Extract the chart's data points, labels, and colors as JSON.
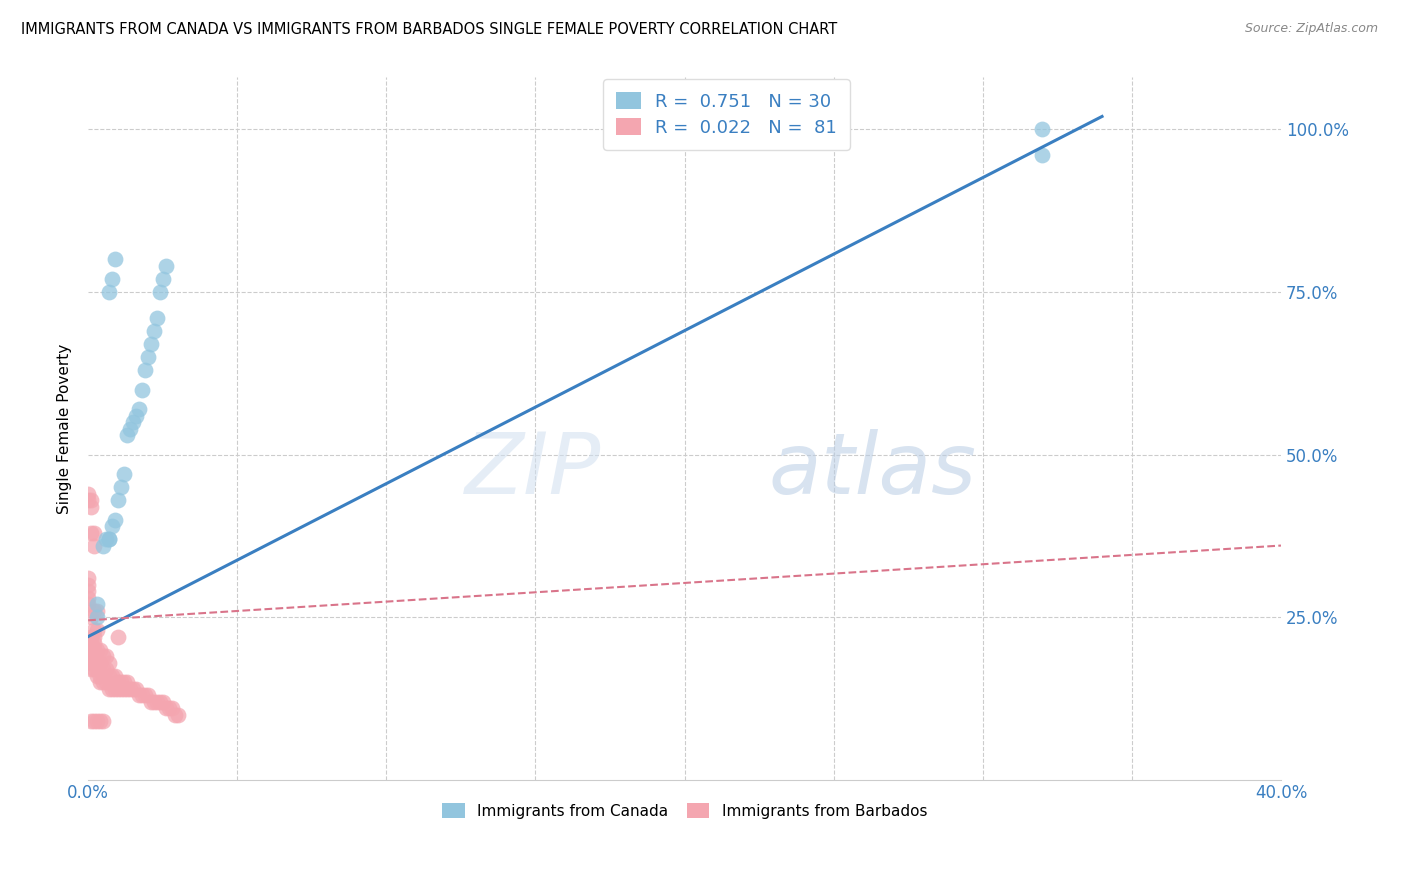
{
  "title": "IMMIGRANTS FROM CANADA VS IMMIGRANTS FROM BARBADOS SINGLE FEMALE POVERTY CORRELATION CHART",
  "source": "Source: ZipAtlas.com",
  "ylabel": "Single Female Poverty",
  "watermark": "ZIPatlas",
  "legend_canada_r": "R =  0.751",
  "legend_canada_n": "N = 30",
  "legend_barbados_r": "R =  0.022",
  "legend_barbados_n": "N =  81",
  "legend_canada_label": "Immigrants from Canada",
  "legend_barbados_label": "Immigrants from Barbados",
  "canada_color": "#92c5de",
  "barbados_color": "#f4a6b0",
  "canada_line_color": "#3a7fc1",
  "barbados_line_color": "#d9748a",
  "xlim": [
    0.0,
    0.4
  ],
  "ylim": [
    0.0,
    1.08
  ],
  "canada_x": [
    0.003,
    0.003,
    0.005,
    0.006,
    0.007,
    0.007,
    0.008,
    0.009,
    0.01,
    0.011,
    0.012,
    0.013,
    0.014,
    0.015,
    0.016,
    0.017,
    0.018,
    0.019,
    0.02,
    0.021,
    0.022,
    0.023,
    0.024,
    0.025,
    0.026,
    0.007,
    0.008,
    0.009,
    0.32,
    0.32
  ],
  "canada_y": [
    0.25,
    0.27,
    0.36,
    0.37,
    0.37,
    0.37,
    0.39,
    0.4,
    0.43,
    0.45,
    0.47,
    0.53,
    0.54,
    0.55,
    0.56,
    0.57,
    0.6,
    0.63,
    0.65,
    0.67,
    0.69,
    0.71,
    0.75,
    0.77,
    0.79,
    0.75,
    0.77,
    0.8,
    0.96,
    1.0
  ],
  "barbados_x": [
    0.0,
    0.0,
    0.0,
    0.0,
    0.0,
    0.0,
    0.001,
    0.001,
    0.001,
    0.001,
    0.001,
    0.001,
    0.001,
    0.001,
    0.002,
    0.002,
    0.002,
    0.002,
    0.002,
    0.002,
    0.002,
    0.002,
    0.003,
    0.003,
    0.003,
    0.003,
    0.003,
    0.004,
    0.004,
    0.004,
    0.004,
    0.005,
    0.005,
    0.005,
    0.006,
    0.006,
    0.006,
    0.007,
    0.007,
    0.007,
    0.008,
    0.008,
    0.009,
    0.009,
    0.01,
    0.01,
    0.01,
    0.011,
    0.011,
    0.012,
    0.012,
    0.013,
    0.013,
    0.014,
    0.015,
    0.016,
    0.017,
    0.018,
    0.019,
    0.02,
    0.021,
    0.022,
    0.023,
    0.024,
    0.025,
    0.026,
    0.027,
    0.028,
    0.029,
    0.03,
    0.0,
    0.001,
    0.001,
    0.002,
    0.002,
    0.003,
    0.001,
    0.002,
    0.003,
    0.004,
    0.005
  ],
  "barbados_y": [
    0.27,
    0.28,
    0.29,
    0.3,
    0.31,
    0.44,
    0.17,
    0.18,
    0.19,
    0.2,
    0.21,
    0.22,
    0.25,
    0.42,
    0.17,
    0.18,
    0.19,
    0.2,
    0.21,
    0.22,
    0.23,
    0.26,
    0.16,
    0.17,
    0.18,
    0.2,
    0.23,
    0.15,
    0.16,
    0.18,
    0.2,
    0.15,
    0.17,
    0.19,
    0.15,
    0.17,
    0.19,
    0.14,
    0.16,
    0.18,
    0.14,
    0.16,
    0.14,
    0.16,
    0.14,
    0.15,
    0.22,
    0.14,
    0.15,
    0.14,
    0.15,
    0.14,
    0.15,
    0.14,
    0.14,
    0.14,
    0.13,
    0.13,
    0.13,
    0.13,
    0.12,
    0.12,
    0.12,
    0.12,
    0.12,
    0.11,
    0.11,
    0.11,
    0.1,
    0.1,
    0.43,
    0.43,
    0.38,
    0.38,
    0.36,
    0.26,
    0.09,
    0.09,
    0.09,
    0.09,
    0.09
  ],
  "canada_line_x": [
    0.0,
    0.34
  ],
  "canada_line_y": [
    0.22,
    1.02
  ],
  "barbados_line_x": [
    0.0,
    0.4
  ],
  "barbados_line_y": [
    0.245,
    0.36
  ],
  "xticks": [
    0.0,
    0.05,
    0.1,
    0.15,
    0.2,
    0.25,
    0.3,
    0.35,
    0.4
  ],
  "yticks": [
    0.25,
    0.5,
    0.75,
    1.0
  ],
  "xticklabels_show": {
    "0.0": "0.0%",
    "0.40": "40.0%"
  },
  "yticklabels": [
    "25.0%",
    "50.0%",
    "75.0%",
    "100.0%"
  ]
}
